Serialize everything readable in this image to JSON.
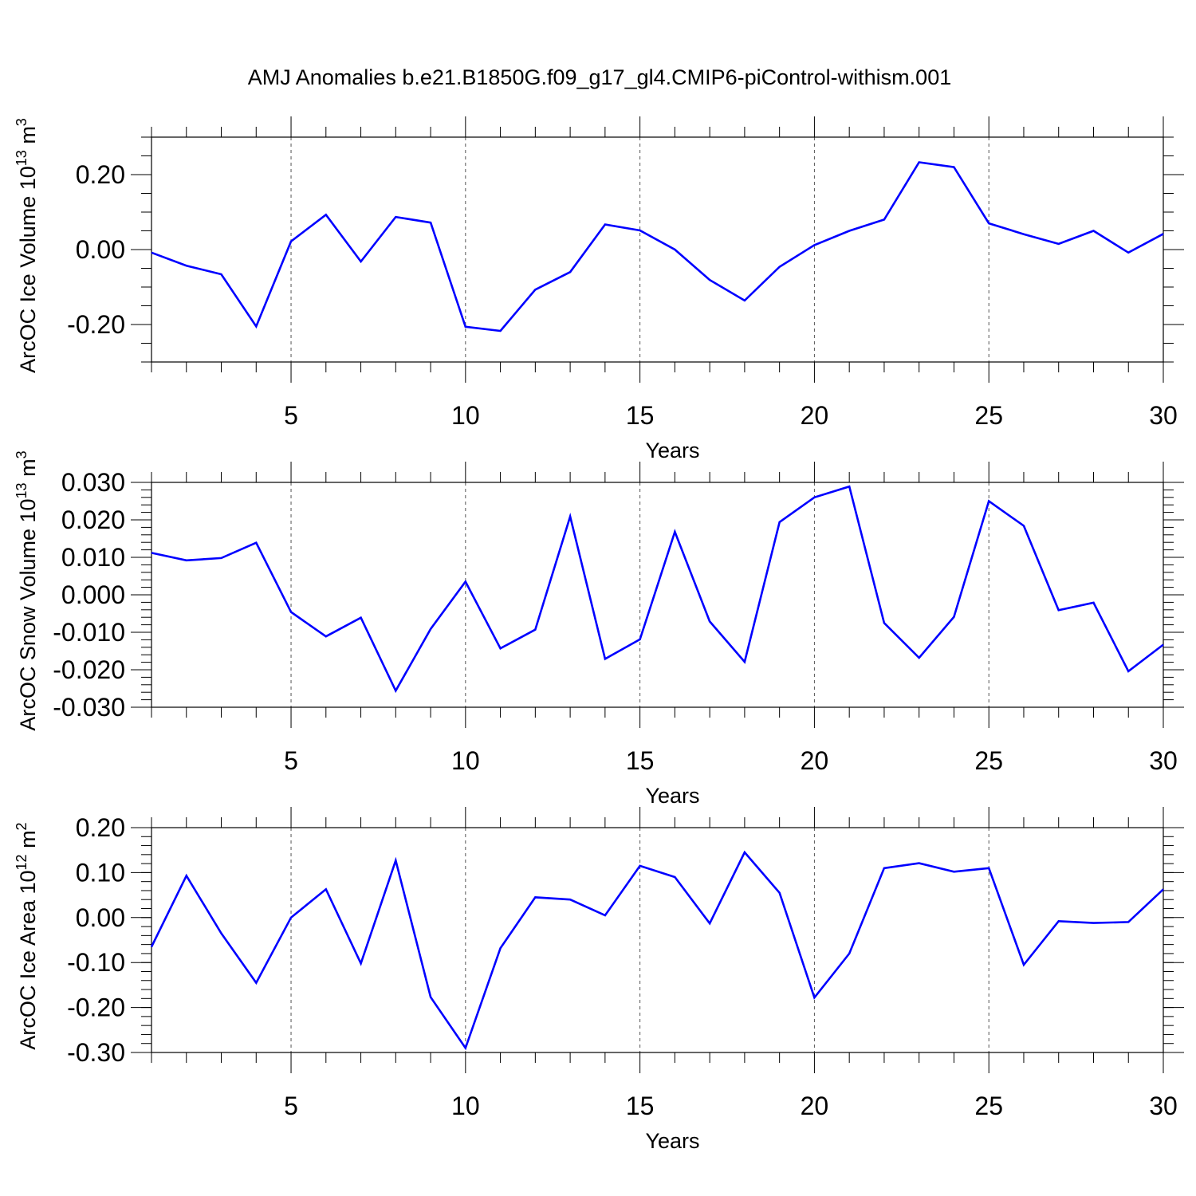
{
  "title": "AMJ Anomalies b.e21.B1850G.f09_g17_gl4.CMIP6-piControl-withism.001",
  "colors": {
    "series": "#0000ff",
    "axis": "#000000",
    "grid": "#555555",
    "background": "#ffffff"
  },
  "chart_data": [
    {
      "type": "line",
      "title": "AMJ Anomalies b.e21.B1850G.f09_g17_gl4.CMIP6-piControl-withism.001",
      "xlabel": "Years",
      "ylabel": "ArcOC Ice Volume 10",
      "ylabel_exponent": "13",
      "ylabel_unit": " m",
      "ylabel_unit_exponent": "3",
      "xlim": [
        1,
        30
      ],
      "ylim": [
        -0.3,
        0.3
      ],
      "x_ticks": [
        5,
        10,
        15,
        20,
        25,
        30
      ],
      "x_tick_labels": [
        "5",
        "10",
        "15",
        "20",
        "25",
        "30"
      ],
      "y_ticks": [
        -0.2,
        0.0,
        0.2
      ],
      "y_tick_labels": [
        "-0.20",
        "0.00",
        "0.20"
      ],
      "y_minor_step": 0.05,
      "grid": "vertical dashed at major x ticks",
      "x": [
        1,
        2,
        3,
        4,
        5,
        6,
        7,
        8,
        9,
        10,
        11,
        12,
        13,
        14,
        15,
        16,
        17,
        18,
        19,
        20,
        21,
        22,
        23,
        24,
        25,
        26,
        27,
        28,
        29,
        30
      ],
      "values": [
        -0.008,
        -0.043,
        -0.066,
        -0.205,
        0.022,
        0.093,
        -0.032,
        0.087,
        0.072,
        -0.206,
        -0.217,
        -0.107,
        -0.06,
        0.067,
        0.051,
        0.0,
        -0.081,
        -0.136,
        -0.046,
        0.012,
        0.05,
        0.08,
        0.233,
        0.22,
        0.07,
        0.041,
        0.015,
        0.05,
        -0.008,
        0.042
      ]
    },
    {
      "type": "line",
      "xlabel": "Years",
      "ylabel": "ArcOC Snow Volume 10",
      "ylabel_exponent": "13",
      "ylabel_unit": " m",
      "ylabel_unit_exponent": "3",
      "xlim": [
        1,
        30
      ],
      "ylim": [
        -0.03,
        0.03
      ],
      "x_ticks": [
        5,
        10,
        15,
        20,
        25,
        30
      ],
      "x_tick_labels": [
        "5",
        "10",
        "15",
        "20",
        "25",
        "30"
      ],
      "y_ticks": [
        -0.03,
        -0.02,
        -0.01,
        0.0,
        0.01,
        0.02,
        0.03
      ],
      "y_tick_labels": [
        "-0.030",
        "-0.020",
        "-0.010",
        "0.000",
        "0.010",
        "0.020",
        "0.030"
      ],
      "y_minor_step": 0.002,
      "grid": "vertical dashed at major x ticks",
      "x": [
        1,
        2,
        3,
        4,
        5,
        6,
        7,
        8,
        9,
        10,
        11,
        12,
        13,
        14,
        15,
        16,
        17,
        18,
        19,
        20,
        21,
        22,
        23,
        24,
        25,
        26,
        27,
        28,
        29,
        30
      ],
      "values": [
        0.0112,
        0.0092,
        0.0098,
        0.0139,
        -0.0046,
        -0.0111,
        -0.0061,
        -0.0256,
        -0.0091,
        0.0035,
        -0.0143,
        -0.0093,
        0.0209,
        -0.0171,
        -0.0119,
        0.0168,
        -0.0071,
        -0.0179,
        0.0194,
        0.026,
        0.0289,
        -0.0075,
        -0.0168,
        -0.0059,
        0.025,
        0.0184,
        -0.0041,
        -0.0021,
        -0.0204,
        -0.0133
      ]
    },
    {
      "type": "line",
      "xlabel": "Years",
      "ylabel": "ArcOC Ice Area 10",
      "ylabel_exponent": "12",
      "ylabel_unit": " m",
      "ylabel_unit_exponent": "2",
      "xlim": [
        1,
        30
      ],
      "ylim": [
        -0.3,
        0.2
      ],
      "x_ticks": [
        5,
        10,
        15,
        20,
        25,
        30
      ],
      "x_tick_labels": [
        "5",
        "10",
        "15",
        "20",
        "25",
        "30"
      ],
      "y_ticks": [
        -0.3,
        -0.2,
        -0.1,
        0.0,
        0.1,
        0.2
      ],
      "y_tick_labels": [
        "-0.30",
        "-0.20",
        "-0.10",
        "0.00",
        "0.10",
        "0.20"
      ],
      "y_minor_step": 0.02,
      "grid": "vertical dashed at major x ticks",
      "x": [
        1,
        2,
        3,
        4,
        5,
        6,
        7,
        8,
        9,
        10,
        11,
        12,
        13,
        14,
        15,
        16,
        17,
        18,
        19,
        20,
        21,
        22,
        23,
        24,
        25,
        26,
        27,
        28,
        29,
        30
      ],
      "values": [
        -0.065,
        0.093,
        -0.035,
        -0.145,
        0.0,
        0.063,
        -0.102,
        0.127,
        -0.177,
        -0.29,
        -0.068,
        0.045,
        0.04,
        0.005,
        0.115,
        0.09,
        -0.013,
        0.145,
        0.055,
        -0.178,
        -0.08,
        0.11,
        0.121,
        0.102,
        0.11,
        -0.105,
        -0.008,
        -0.012,
        -0.01,
        0.063
      ]
    }
  ]
}
